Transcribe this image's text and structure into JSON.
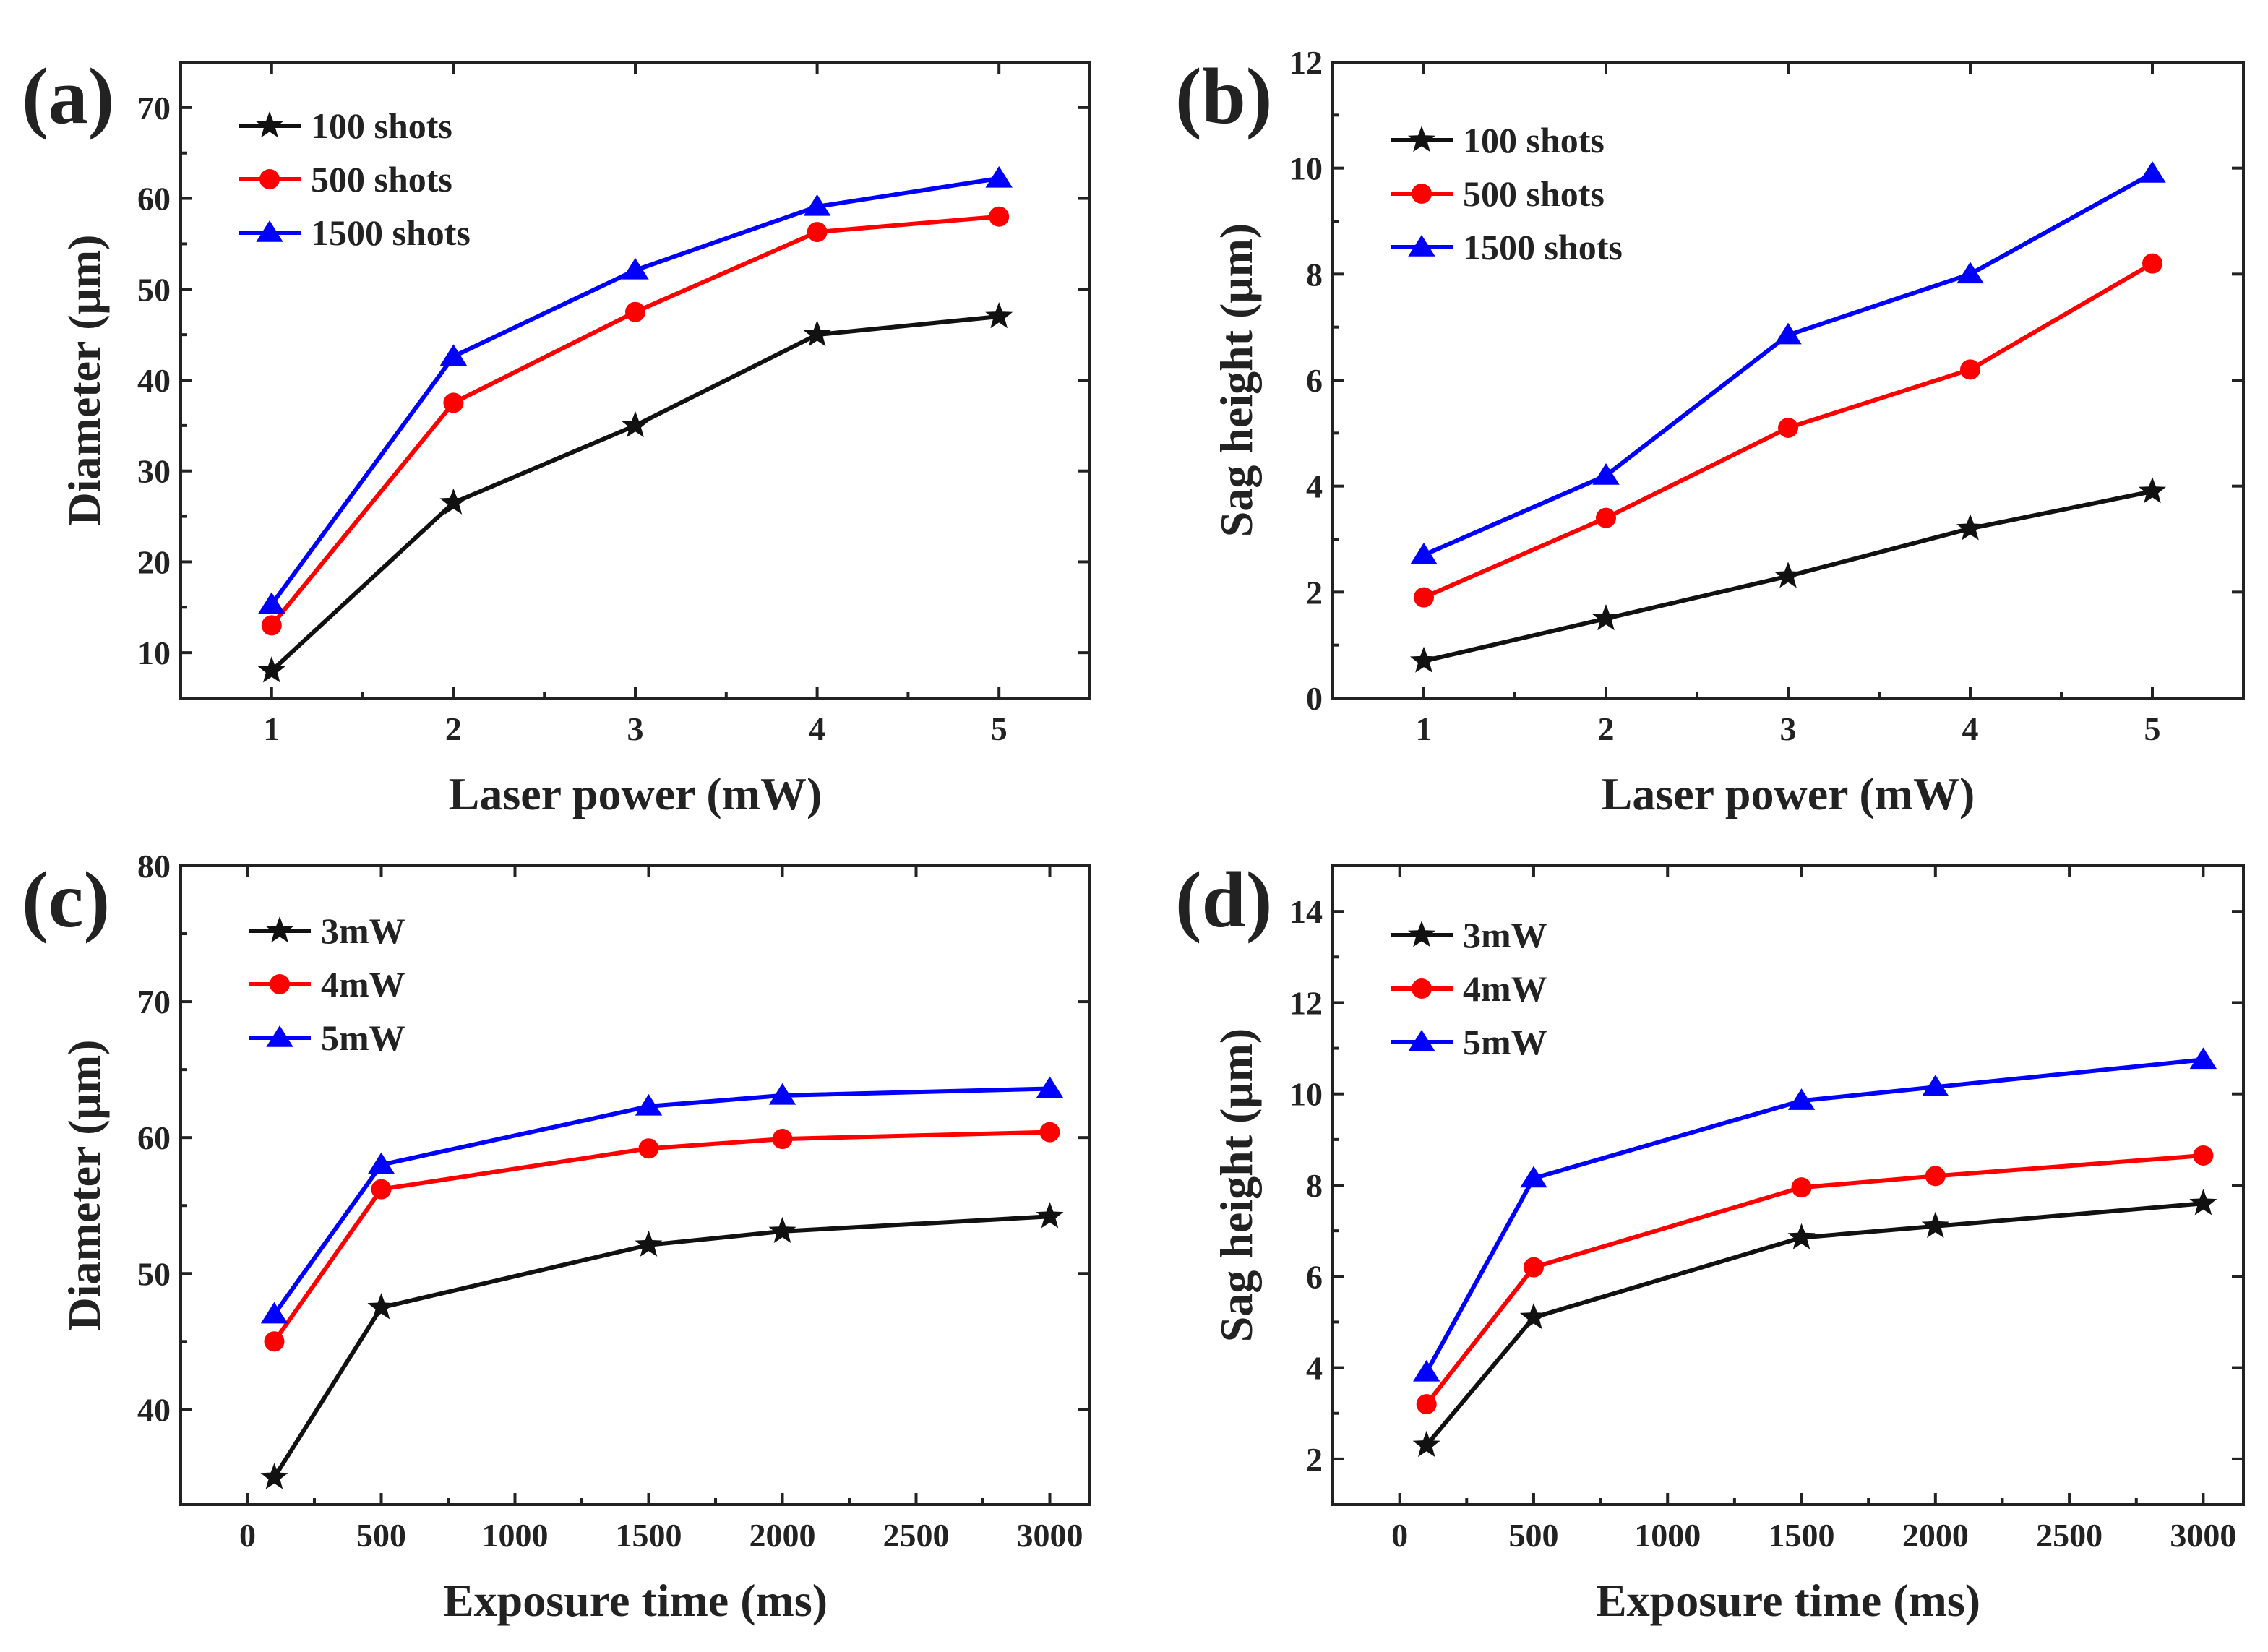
{
  "chart_data": [
    {
      "type": "line",
      "panel_label": "(a)",
      "xlabel": "Laser power (mW)",
      "ylabel": "Diameter (μm)",
      "xlim": [
        0.5,
        5.5
      ],
      "ylim": [
        5,
        75
      ],
      "xticks": [
        1,
        2,
        3,
        4,
        5
      ],
      "yticks": [
        10,
        20,
        30,
        40,
        50,
        60,
        70
      ],
      "legend_position": "top-left",
      "series": [
        {
          "name": "100 shots",
          "marker": "star",
          "color": "#111111",
          "x": [
            1,
            2,
            3,
            4,
            5
          ],
          "values": [
            8,
            26.5,
            35,
            45,
            47
          ]
        },
        {
          "name": "500 shots",
          "marker": "circle",
          "color": "#ff0000",
          "x": [
            1,
            2,
            3,
            4,
            5
          ],
          "values": [
            13,
            37.5,
            47.5,
            56.3,
            58
          ]
        },
        {
          "name": "1500 shots",
          "marker": "triangle",
          "color": "#0000ff",
          "x": [
            1,
            2,
            3,
            4,
            5
          ],
          "values": [
            15.3,
            42.6,
            52.1,
            59.1,
            62.2
          ]
        }
      ]
    },
    {
      "type": "line",
      "panel_label": "(b)",
      "xlabel": "Laser power (mW)",
      "ylabel": "Sag height (μm)",
      "xlim": [
        0.5,
        5.5
      ],
      "ylim": [
        0,
        12
      ],
      "xticks": [
        1,
        2,
        3,
        4,
        5
      ],
      "yticks": [
        0,
        2,
        4,
        6,
        8,
        10,
        12
      ],
      "legend_position": "top-left",
      "series": [
        {
          "name": "100 shots",
          "marker": "star",
          "color": "#111111",
          "x": [
            1,
            2,
            3,
            4,
            5
          ],
          "values": [
            0.7,
            1.5,
            2.3,
            3.2,
            3.9
          ]
        },
        {
          "name": "500 shots",
          "marker": "circle",
          "color": "#ff0000",
          "x": [
            1,
            2,
            3,
            4,
            5
          ],
          "values": [
            1.9,
            3.4,
            5.1,
            6.2,
            8.2
          ]
        },
        {
          "name": "1500 shots",
          "marker": "triangle",
          "color": "#0000ff",
          "x": [
            1,
            2,
            3,
            4,
            5
          ],
          "values": [
            2.7,
            4.2,
            6.85,
            8.0,
            9.9
          ]
        }
      ]
    },
    {
      "type": "line",
      "panel_label": "(c)",
      "xlabel": "Exposure time (ms)",
      "ylabel": "Diameter (μm)",
      "xlim": [
        -250,
        3150
      ],
      "ylim": [
        33,
        80
      ],
      "xticks": [
        0,
        500,
        1000,
        1500,
        2000,
        2500,
        3000
      ],
      "yticks": [
        40,
        50,
        60,
        70,
        80
      ],
      "legend_position": "top-left",
      "series": [
        {
          "name": "3mW",
          "marker": "star",
          "color": "#111111",
          "x": [
            100,
            500,
            1500,
            2000,
            3000
          ],
          "values": [
            35,
            47.5,
            52.1,
            53.1,
            54.2
          ]
        },
        {
          "name": "4mW",
          "marker": "circle",
          "color": "#ff0000",
          "x": [
            100,
            500,
            1500,
            2000,
            3000
          ],
          "values": [
            45,
            56.2,
            59.2,
            59.9,
            60.4
          ]
        },
        {
          "name": "5mW",
          "marker": "triangle",
          "color": "#0000ff",
          "x": [
            100,
            500,
            1500,
            2000,
            3000
          ],
          "values": [
            47,
            58,
            62.3,
            63.1,
            63.6
          ]
        }
      ]
    },
    {
      "type": "line",
      "panel_label": "(d)",
      "xlabel": "Exposure time (ms)",
      "ylabel": "Sag height (μm)",
      "xlim": [
        -250,
        3150
      ],
      "ylim": [
        1,
        15
      ],
      "xticks": [
        0,
        500,
        1000,
        1500,
        2000,
        2500,
        3000
      ],
      "yticks": [
        2,
        4,
        6,
        8,
        10,
        12,
        14
      ],
      "legend_position": "top-left",
      "series": [
        {
          "name": "3mW",
          "marker": "star",
          "color": "#111111",
          "x": [
            100,
            500,
            1500,
            2000,
            3000
          ],
          "values": [
            2.3,
            5.1,
            6.85,
            7.1,
            7.6
          ]
        },
        {
          "name": "4mW",
          "marker": "circle",
          "color": "#ff0000",
          "x": [
            100,
            500,
            1500,
            2000,
            3000
          ],
          "values": [
            3.2,
            6.2,
            7.95,
            8.2,
            8.65
          ]
        },
        {
          "name": "5mW",
          "marker": "triangle",
          "color": "#0000ff",
          "x": [
            100,
            500,
            1500,
            2000,
            3000
          ],
          "values": [
            3.9,
            8.15,
            9.85,
            10.15,
            10.75
          ]
        }
      ]
    }
  ]
}
